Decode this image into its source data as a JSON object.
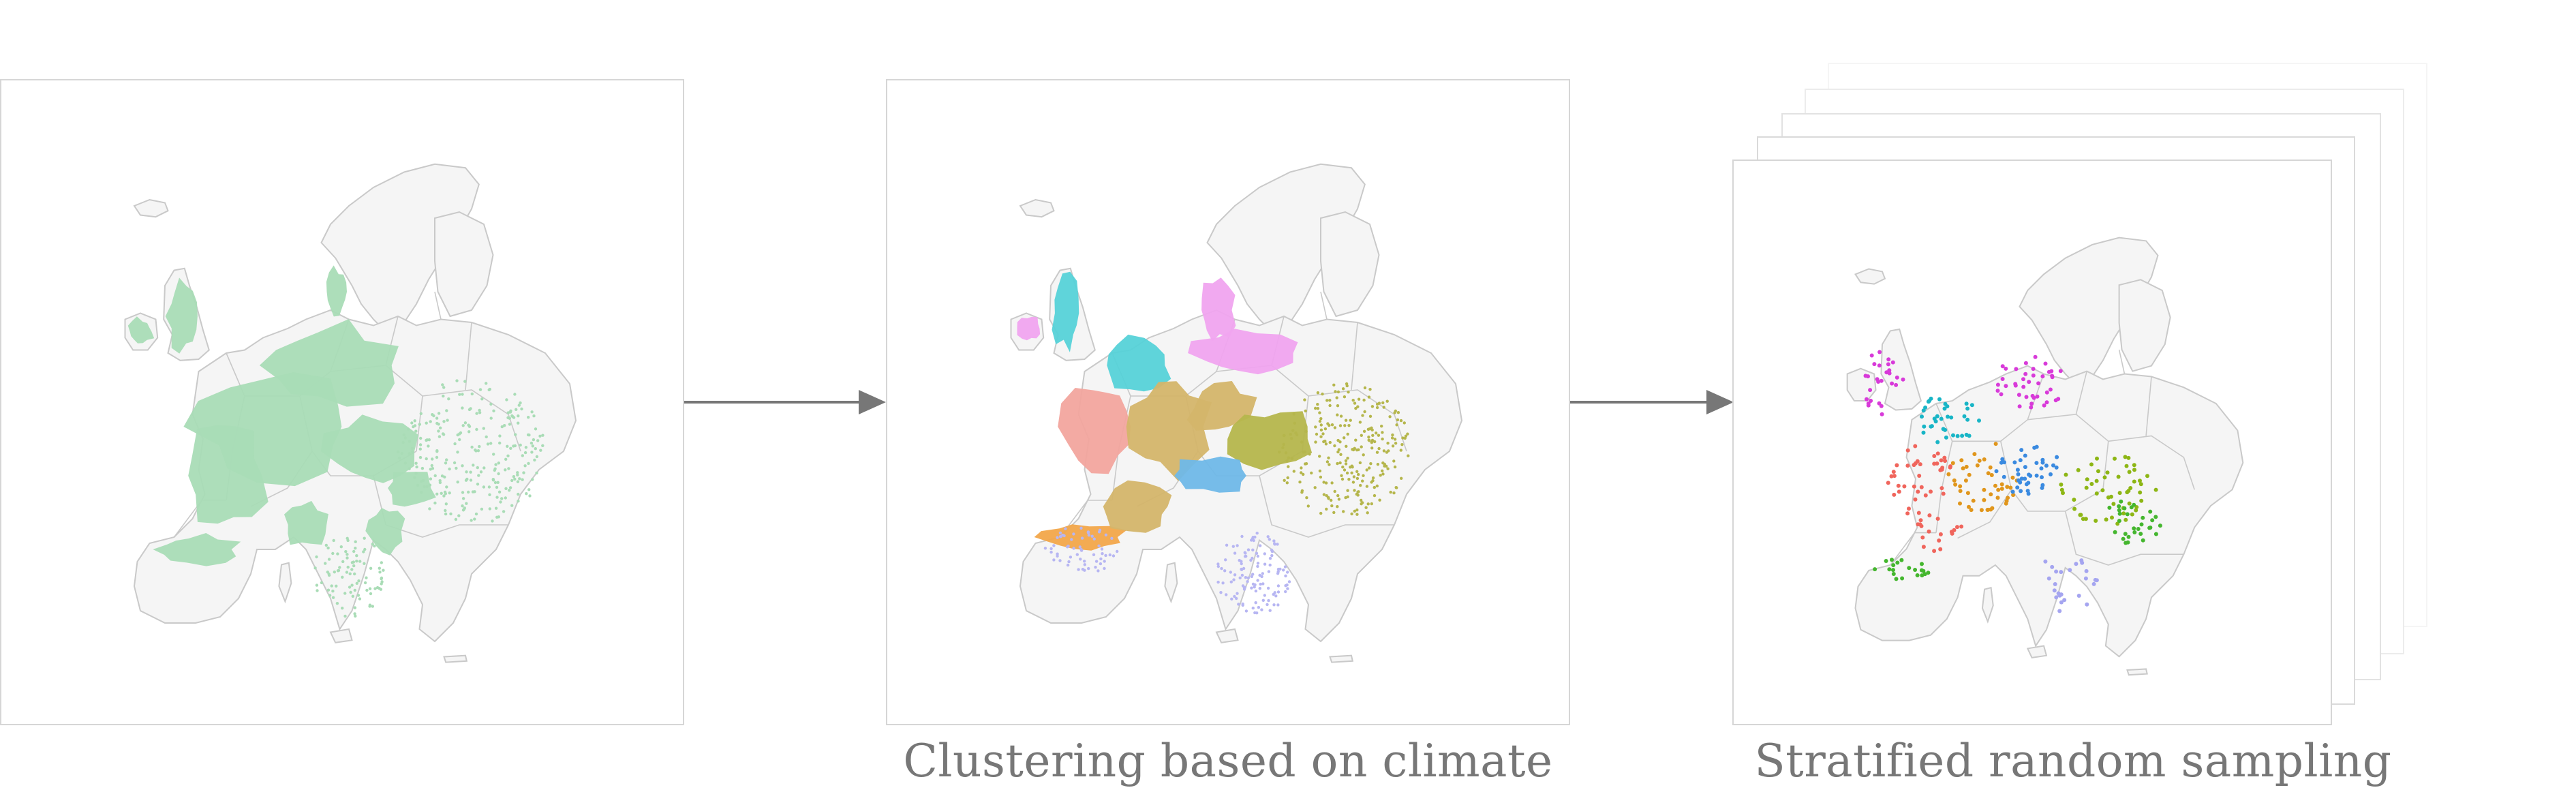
{
  "captions": {
    "clustering": "Clustering based on climate",
    "sampling": "Stratified random sampling"
  },
  "colors": {
    "land": "#f5f5f5",
    "border": "#c9c9c9",
    "occurrence": "#a9dcb6",
    "arrow": "#777777",
    "clusters": [
      "#f0a4ef",
      "#56d2d8",
      "#f2a59e",
      "#d4b56a",
      "#b5b64c",
      "#6fb8e8",
      "#b7b6f2",
      "#f2a64a"
    ],
    "samples": [
      "#d83ad9",
      "#18b5c6",
      "#f0655c",
      "#e0961c",
      "#8db614",
      "#3a8ae0",
      "#44b62e",
      "#a5a5f0"
    ]
  },
  "icons": {
    "arrow_1": "right-arrow-icon",
    "arrow_2": "right-arrow-icon"
  }
}
